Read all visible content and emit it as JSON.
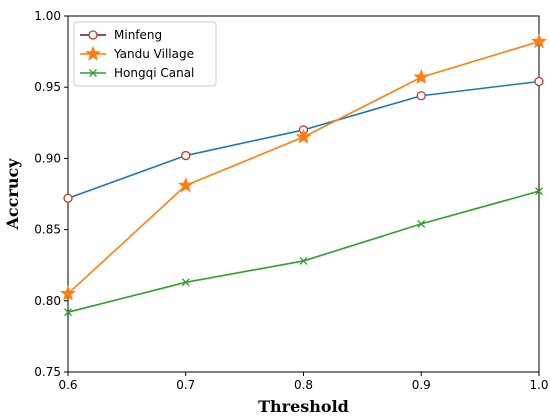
{
  "chart_data": {
    "type": "line",
    "title": "",
    "xlabel": "Threshold",
    "ylabel": "Accrucy",
    "x": [
      0.6,
      0.7,
      0.8,
      0.9,
      1.0
    ],
    "xlim": [
      0.6,
      1.0
    ],
    "ylim": [
      0.75,
      1.0
    ],
    "x_ticks": [
      "0.6",
      "0.7",
      "0.8",
      "0.9",
      "1.0"
    ],
    "y_ticks": [
      "0.75",
      "0.80",
      "0.85",
      "0.90",
      "0.95",
      "1.00"
    ],
    "grid": false,
    "legend_position": "top-left",
    "series": [
      {
        "name": "Minfeng",
        "values": [
          0.872,
          0.902,
          0.92,
          0.944,
          0.954
        ],
        "line_color": "#1f77b4",
        "marker": "circle-open",
        "marker_color": "#c0392b",
        "legend_line_color": "#5b1f2a"
      },
      {
        "name": "Yandu Village",
        "values": [
          0.805,
          0.881,
          0.915,
          0.957,
          0.982
        ],
        "line_color": "#ff7f0e",
        "marker": "star",
        "marker_color": "#ff7f0e",
        "legend_line_color": "#ff7f0e"
      },
      {
        "name": "Hongqi Canal",
        "values": [
          0.792,
          0.813,
          0.828,
          0.854,
          0.877
        ],
        "line_color": "#2ca02c",
        "marker": "x",
        "marker_color": "#2ca02c",
        "legend_line_color": "#2ca02c"
      }
    ]
  }
}
